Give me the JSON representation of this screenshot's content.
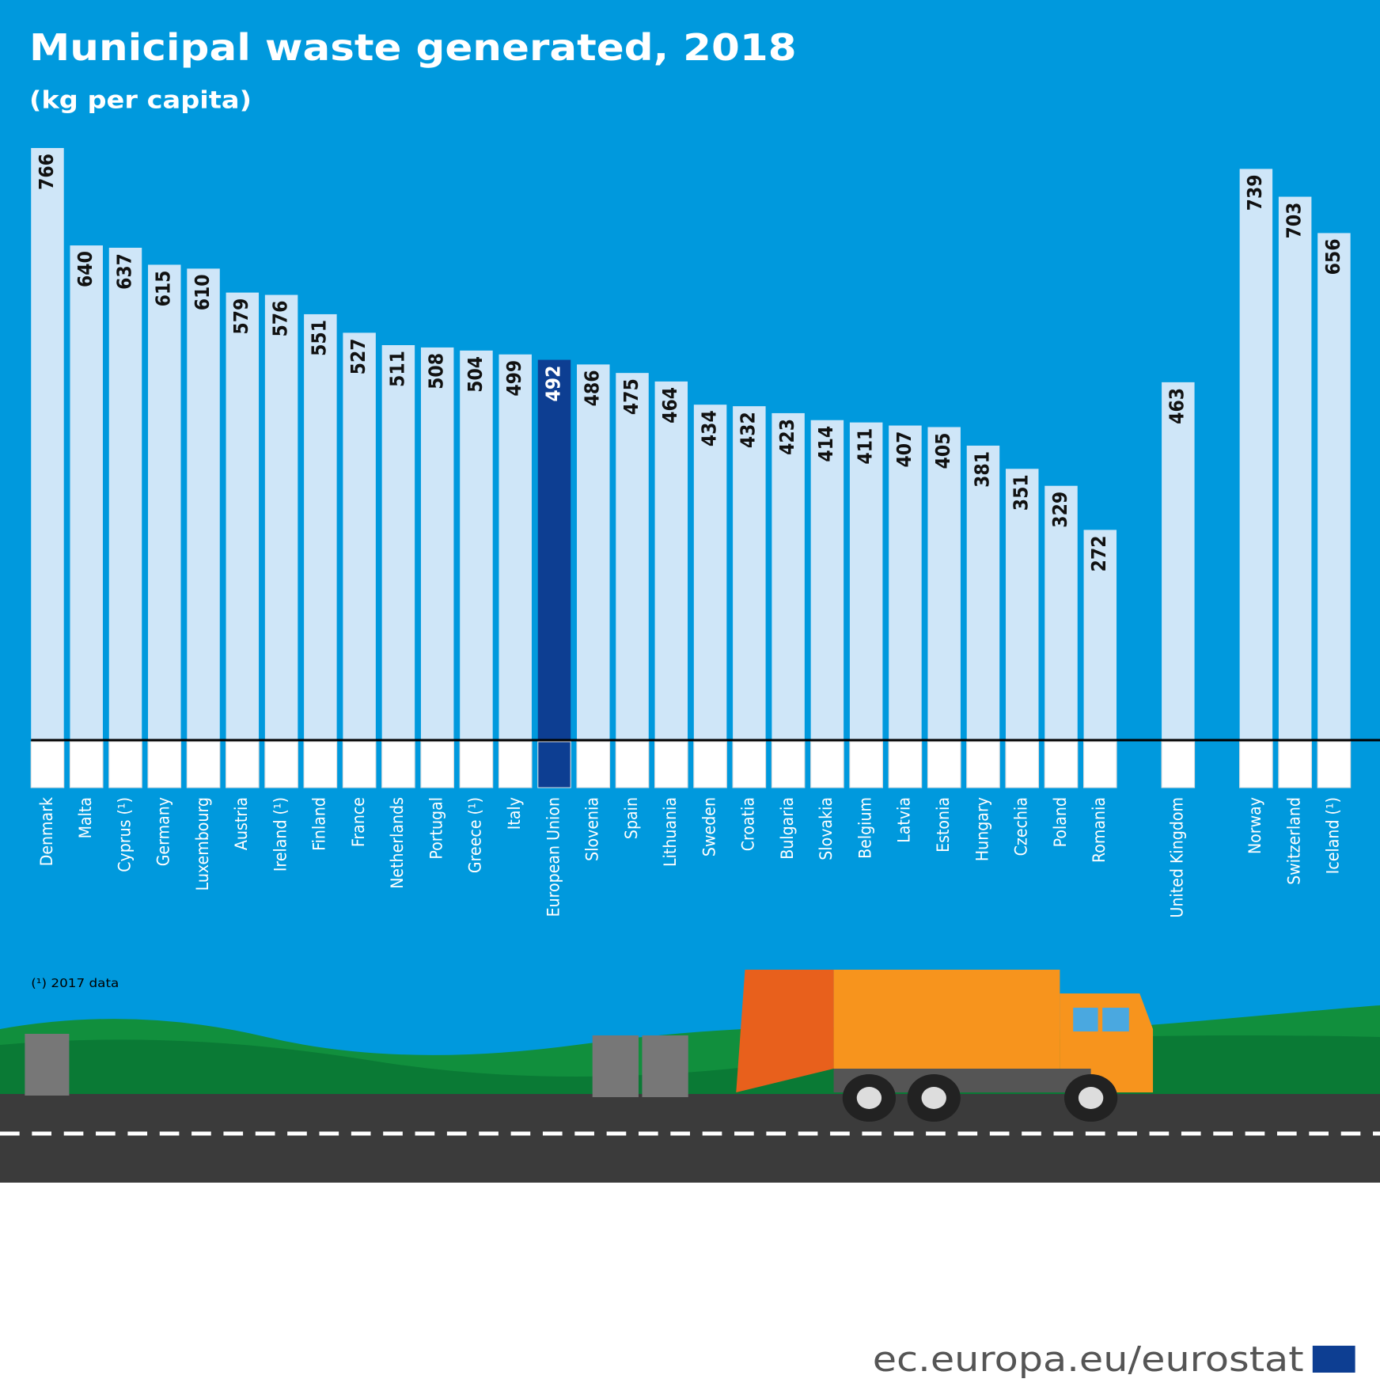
{
  "chart_data": {
    "type": "bar",
    "title": "Municipal waste generated, 2018",
    "subtitle": "(kg per capita)",
    "categories": [
      "Denmark",
      "Malta",
      "Cyprus (¹)",
      "Germany",
      "Luxembourg",
      "Austria",
      "Ireland (¹)",
      "Finland",
      "France",
      "Netherlands",
      "Portugal",
      "Greece (¹)",
      "Italy",
      "European Union",
      "Slovenia",
      "Spain",
      "Lithuania",
      "Sweden",
      "Croatia",
      "Bulgaria",
      "Slovakia",
      "Belgium",
      "Latvia",
      "Estonia",
      "Hungary",
      "Czechia",
      "Poland",
      "Romania",
      "United Kingdom",
      "Norway",
      "Switzerland",
      "Iceland (¹)"
    ],
    "values": [
      766,
      640,
      637,
      615,
      610,
      579,
      576,
      551,
      527,
      511,
      508,
      504,
      499,
      492,
      486,
      475,
      464,
      434,
      432,
      423,
      414,
      411,
      407,
      405,
      381,
      351,
      329,
      272,
      463,
      739,
      703,
      656
    ],
    "colors": [
      "#cfe6f8",
      "#cfe6f8",
      "#cfe6f8",
      "#cfe6f8",
      "#cfe6f8",
      "#cfe6f8",
      "#cfe6f8",
      "#cfe6f8",
      "#cfe6f8",
      "#cfe6f8",
      "#cfe6f8",
      "#cfe6f8",
      "#cfe6f8",
      "#0d3e92",
      "#cfe6f8",
      "#cfe6f8",
      "#cfe6f8",
      "#cfe6f8",
      "#cfe6f8",
      "#cfe6f8",
      "#cfe6f8",
      "#cfe6f8",
      "#cfe6f8",
      "#cfe6f8",
      "#cfe6f8",
      "#cfe6f8",
      "#cfe6f8",
      "#cfe6f8",
      "#cfe6f8",
      "#cfe6f8",
      "#cfe6f8",
      "#cfe6f8"
    ],
    "footnote": "(¹) 2017 data",
    "source": "ec.europa.eu/eurostat"
  }
}
